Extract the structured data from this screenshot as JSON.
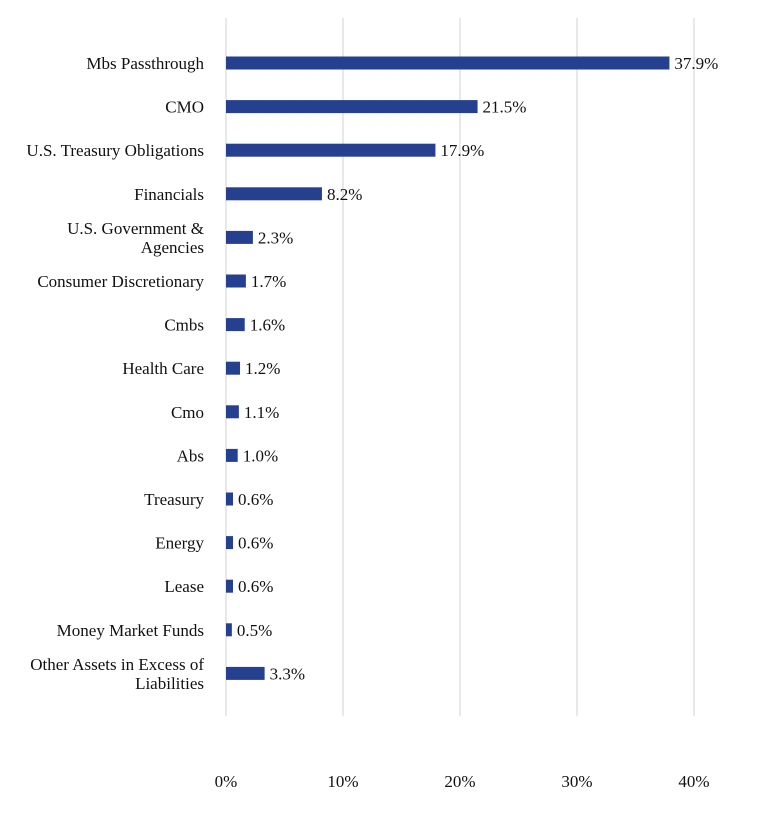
{
  "chart_data": {
    "type": "bar",
    "orientation": "horizontal",
    "categories": [
      [
        "Mbs Passthrough"
      ],
      [
        "CMO"
      ],
      [
        "U.S. Treasury Obligations"
      ],
      [
        "Financials"
      ],
      [
        "U.S. Government &",
        "Agencies"
      ],
      [
        "Consumer Discretionary"
      ],
      [
        "Cmbs"
      ],
      [
        "Health Care"
      ],
      [
        "Cmo"
      ],
      [
        "Abs"
      ],
      [
        "Treasury"
      ],
      [
        "Energy"
      ],
      [
        "Lease"
      ],
      [
        "Money Market Funds"
      ],
      [
        "Other Assets in Excess of",
        "Liabilities"
      ]
    ],
    "values": [
      37.9,
      21.5,
      17.9,
      8.2,
      2.3,
      1.7,
      1.6,
      1.2,
      1.1,
      1.0,
      0.6,
      0.6,
      0.6,
      0.5,
      3.3
    ],
    "data_labels": [
      "37.9%",
      "21.5%",
      "17.9%",
      "8.2%",
      "2.3%",
      "1.7%",
      "1.6%",
      "1.2%",
      "1.1%",
      "1.0%",
      "0.6%",
      "0.6%",
      "0.6%",
      "0.5%",
      "3.3%"
    ],
    "x_ticks": [
      0,
      10,
      20,
      30,
      40
    ],
    "x_tick_labels": [
      "0%",
      "10%",
      "20%",
      "30%",
      "40%"
    ],
    "xlim": [
      0,
      40
    ],
    "grid": true,
    "legend": "none",
    "bar_color": "#24408e",
    "grid_color": "#d0d0d0",
    "title": "",
    "xlabel": "",
    "ylabel": ""
  }
}
